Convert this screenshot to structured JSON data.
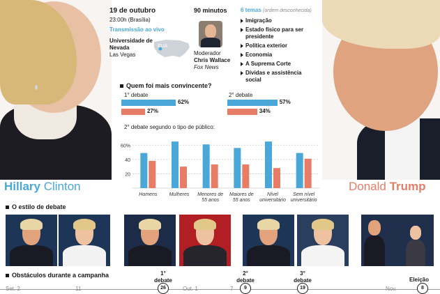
{
  "header": {
    "date": "19 de outubro",
    "time": "23:00h (Brasília)",
    "broadcast": "Transmissão ao vivo",
    "venue": "Universidade de Nevada",
    "city": "Las Vegas",
    "map_label": "EUA",
    "duration": "90 minutos",
    "moderator_role": "Moderador",
    "moderator_name": "Chris Wallace",
    "moderator_network": "Fox News",
    "topics_title": "6 temas",
    "topics_note": "(ordem desconhecida)",
    "topics": [
      "Imigração",
      "Estado físico para ser presidente",
      "Política exterior",
      "Economia",
      "A Suprema Corte",
      "Dívidas e assistência social"
    ]
  },
  "candidates": {
    "clinton_first": "Hillary",
    "clinton_last": "Clinton",
    "trump_first": "Donald",
    "trump_last": "Trump"
  },
  "convincing": {
    "title": "Quem foi mais convincente?",
    "debate1_label": "1° debate",
    "debate2_label": "2° debate",
    "d1_clinton": "62%",
    "d1_trump": "27%",
    "d2_clinton": "57%",
    "d2_trump": "34%"
  },
  "chart_data": [
    {
      "type": "bar",
      "title": "Quem foi mais convincente?",
      "categories": [
        "1° debate",
        "2° debate"
      ],
      "series": [
        {
          "name": "Hillary Clinton",
          "values": [
            62,
            57
          ],
          "color": "#4aa8d8"
        },
        {
          "name": "Donald Trump",
          "values": [
            27,
            34
          ],
          "color": "#e77d67"
        }
      ]
    },
    {
      "type": "bar",
      "title": "2° debate segundo o tipo de público:",
      "categories": [
        "Homens",
        "Mulheres",
        "Menores de 55 anos",
        "Maiores de 55 anos",
        "Nível universitário",
        "Sem nível universitário"
      ],
      "series": [
        {
          "name": "Hillary Clinton",
          "values": [
            49,
            65,
            61,
            56,
            65,
            49
          ],
          "color": "#4aa8d8"
        },
        {
          "name": "Donald Trump",
          "values": [
            38,
            30,
            33,
            33,
            28,
            41
          ],
          "color": "#e77d67"
        }
      ],
      "yticks": [
        "20",
        "40",
        "60%"
      ],
      "ylim": [
        0,
        70
      ],
      "grid": true
    }
  ],
  "sections": {
    "style_title": "O estilo de debate",
    "obstacles_title": "Obstáculos durante a campanha"
  },
  "timeline": {
    "debate1": "1° debate",
    "debate1_day": "26",
    "debate2": "2° debate",
    "debate2_day": "9",
    "debate3": "3° debate",
    "debate3_day": "19",
    "election": "Eleição",
    "election_day": "8",
    "set": "Set. 2",
    "set_day2": "11",
    "out": "Out. 1",
    "out_day2": "7",
    "nov": "Nov."
  },
  "colors": {
    "clinton": "#4aa8d8",
    "trump": "#e77d67"
  }
}
